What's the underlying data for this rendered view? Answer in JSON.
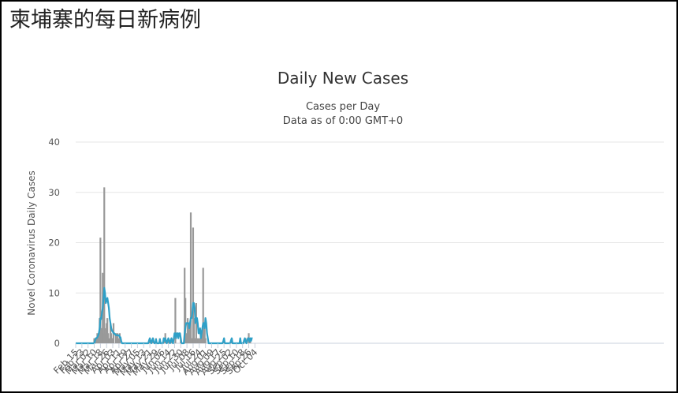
{
  "page": {
    "title": "柬埔寨的每日新病例"
  },
  "chart_data": {
    "type": "bar",
    "title": "Daily New Cases",
    "subtitle": "Cases per Day",
    "subtitle2": "Data as of 0:00 GMT+0",
    "ylabel": "Novel Coronavirus Daily Cases",
    "xlabel": "",
    "ylim": [
      0,
      40
    ],
    "yticks": [
      0,
      10,
      20,
      30,
      40
    ],
    "grid": true,
    "xtick_labels": [
      "Feb 15",
      "Feb 23",
      "Mar 02",
      "Mar 10",
      "Mar 18",
      "Mar 26",
      "Apr 03",
      "Apr 11",
      "Apr 19",
      "Apr 27",
      "May 05",
      "May 13",
      "May 21",
      "May 29",
      "Jun 06",
      "Jun 14",
      "Jun 22",
      "Jun 30",
      "Jul 08",
      "Jul 16",
      "Jul 24",
      "Aug 01",
      "Aug 09",
      "Aug 17",
      "Aug 25",
      "Sep 02",
      "Sep 10",
      "Sep 18",
      "Sep 26",
      "Oct 04"
    ],
    "start_date": "Feb 15",
    "series": [
      {
        "kind": "bar",
        "color": "#999999",
        "points": [
          [
            24,
            1
          ],
          [
            26,
            1
          ],
          [
            28,
            2
          ],
          [
            29,
            1
          ],
          [
            30,
            2
          ],
          [
            31,
            5
          ],
          [
            32,
            21
          ],
          [
            33,
            3
          ],
          [
            34,
            3
          ],
          [
            35,
            14
          ],
          [
            36,
            2
          ],
          [
            37,
            31
          ],
          [
            38,
            2
          ],
          [
            39,
            3
          ],
          [
            40,
            4
          ],
          [
            41,
            5
          ],
          [
            42,
            2
          ],
          [
            43,
            1
          ],
          [
            45,
            4
          ],
          [
            46,
            2
          ],
          [
            47,
            1
          ],
          [
            48,
            1
          ],
          [
            49,
            4
          ],
          [
            52,
            2
          ],
          [
            53,
            1
          ],
          [
            54,
            2
          ],
          [
            56,
            1
          ],
          [
            57,
            2
          ],
          [
            96,
            1
          ],
          [
            100,
            1
          ],
          [
            104,
            1
          ],
          [
            109,
            1
          ],
          [
            114,
            1
          ],
          [
            116,
            2
          ],
          [
            120,
            1
          ],
          [
            124,
            1
          ],
          [
            129,
            9
          ],
          [
            136,
            1
          ],
          [
            141,
            15
          ],
          [
            142,
            9
          ],
          [
            143,
            1
          ],
          [
            144,
            2
          ],
          [
            145,
            5
          ],
          [
            146,
            4
          ],
          [
            147,
            1
          ],
          [
            148,
            3
          ],
          [
            149,
            26
          ],
          [
            150,
            1
          ],
          [
            151,
            1
          ],
          [
            152,
            23
          ],
          [
            153,
            5
          ],
          [
            154,
            1
          ],
          [
            155,
            1
          ],
          [
            156,
            8
          ],
          [
            158,
            1
          ],
          [
            160,
            1
          ],
          [
            162,
            1
          ],
          [
            163,
            1
          ],
          [
            164,
            3
          ],
          [
            165,
            15
          ],
          [
            166,
            2
          ],
          [
            167,
            3
          ],
          [
            168,
            1
          ],
          [
            192,
            1
          ],
          [
            202,
            1
          ],
          [
            213,
            1
          ],
          [
            220,
            1
          ],
          [
            224,
            2
          ],
          [
            226,
            1
          ]
        ]
      },
      {
        "kind": "line",
        "name": "",
        "color": "#2fa0c7",
        "points": [
          [
            0,
            0
          ],
          [
            20,
            0
          ],
          [
            24,
            0
          ],
          [
            25,
            0.5
          ],
          [
            26,
            1
          ],
          [
            27,
            1
          ],
          [
            28,
            1.2
          ],
          [
            29,
            1.5
          ],
          [
            30,
            2
          ],
          [
            31,
            3
          ],
          [
            32,
            5
          ],
          [
            33,
            4.8
          ],
          [
            34,
            6
          ],
          [
            35,
            7
          ],
          [
            36,
            9
          ],
          [
            37,
            11
          ],
          [
            38,
            10
          ],
          [
            39,
            8
          ],
          [
            40,
            8.5
          ],
          [
            41,
            9
          ],
          [
            42,
            8
          ],
          [
            43,
            7
          ],
          [
            44,
            5
          ],
          [
            45,
            4
          ],
          [
            46,
            3
          ],
          [
            47,
            2.5
          ],
          [
            48,
            2.3
          ],
          [
            49,
            2
          ],
          [
            50,
            2
          ],
          [
            52,
            1.6
          ],
          [
            54,
            1.6
          ],
          [
            56,
            1.6
          ],
          [
            57,
            1.2
          ],
          [
            58,
            1.2
          ],
          [
            59,
            0.4
          ],
          [
            60,
            0
          ],
          [
            94,
            0
          ],
          [
            95,
            0.6
          ],
          [
            96,
            1
          ],
          [
            97,
            0.3
          ],
          [
            98,
            0
          ],
          [
            99,
            0.6
          ],
          [
            100,
            1
          ],
          [
            101,
            0.3
          ],
          [
            102,
            0
          ],
          [
            103,
            0
          ],
          [
            104,
            0.8
          ],
          [
            105,
            0
          ],
          [
            108,
            0
          ],
          [
            109,
            0.8
          ],
          [
            110,
            0
          ],
          [
            113,
            0
          ],
          [
            114,
            1
          ],
          [
            115,
            0.5
          ],
          [
            116,
            1
          ],
          [
            117,
            0.3
          ],
          [
            118,
            0
          ],
          [
            119,
            0.6
          ],
          [
            120,
            1
          ],
          [
            121,
            0.4
          ],
          [
            122,
            0
          ],
          [
            123,
            0.6
          ],
          [
            124,
            1
          ],
          [
            125,
            0.3
          ],
          [
            126,
            0
          ],
          [
            127,
            1
          ],
          [
            128,
            2
          ],
          [
            129,
            2
          ],
          [
            130,
            1
          ],
          [
            131,
            2
          ],
          [
            132,
            2
          ],
          [
            133,
            1
          ],
          [
            134,
            2
          ],
          [
            135,
            2
          ],
          [
            136,
            1
          ],
          [
            137,
            0
          ],
          [
            140,
            0
          ],
          [
            141,
            2
          ],
          [
            142,
            3
          ],
          [
            143,
            4
          ],
          [
            144,
            4
          ],
          [
            145,
            4
          ],
          [
            146,
            4
          ],
          [
            147,
            3
          ],
          [
            148,
            4
          ],
          [
            149,
            5
          ],
          [
            150,
            5
          ],
          [
            151,
            6
          ],
          [
            152,
            8
          ],
          [
            153,
            8
          ],
          [
            154,
            7
          ],
          [
            155,
            4
          ],
          [
            156,
            5
          ],
          [
            157,
            5
          ],
          [
            158,
            4
          ],
          [
            159,
            2
          ],
          [
            160,
            2
          ],
          [
            161,
            3
          ],
          [
            162,
            1
          ],
          [
            163,
            2
          ],
          [
            164,
            3
          ],
          [
            165,
            4
          ],
          [
            166,
            4
          ],
          [
            167,
            3
          ],
          [
            168,
            5
          ],
          [
            169,
            4
          ],
          [
            170,
            2
          ],
          [
            171,
            1
          ],
          [
            172,
            0
          ],
          [
            190,
            0
          ],
          [
            191,
            0.4
          ],
          [
            192,
            1
          ],
          [
            193,
            0
          ],
          [
            200,
            0
          ],
          [
            201,
            0.6
          ],
          [
            202,
            1
          ],
          [
            203,
            0
          ],
          [
            212,
            0
          ],
          [
            213,
            1
          ],
          [
            214,
            0
          ],
          [
            217,
            0
          ],
          [
            218,
            0.6
          ],
          [
            219,
            1
          ],
          [
            220,
            0.3
          ],
          [
            221,
            0
          ],
          [
            222,
            0.6
          ],
          [
            223,
            1
          ],
          [
            224,
            1
          ],
          [
            225,
            0.3
          ],
          [
            226,
            1
          ],
          [
            227,
            0.5
          ],
          [
            228,
            1
          ],
          [
            229,
            1
          ]
        ]
      }
    ]
  }
}
